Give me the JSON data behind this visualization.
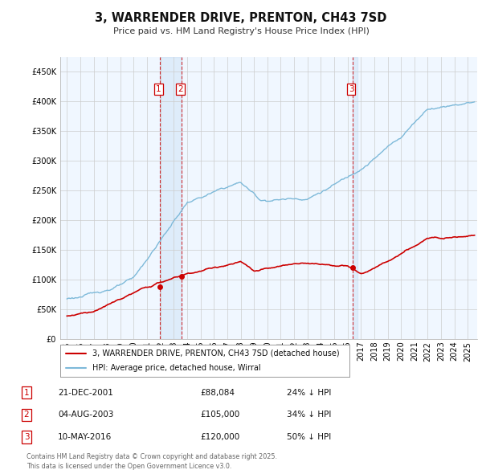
{
  "title": "3, WARRENDER DRIVE, PRENTON, CH43 7SD",
  "subtitle": "Price paid vs. HM Land Registry's House Price Index (HPI)",
  "hpi_label": "HPI: Average price, detached house, Wirral",
  "price_label": "3, WARRENDER DRIVE, PRENTON, CH43 7SD (detached house)",
  "transactions": [
    {
      "num": 1,
      "date": "21-DEC-2001",
      "price": 88084,
      "pct": "24%",
      "x_year": 2001.97,
      "price_val": 88084
    },
    {
      "num": 2,
      "date": "04-AUG-2003",
      "price": 105000,
      "pct": "34%",
      "x_year": 2003.59,
      "price_val": 105000
    },
    {
      "num": 3,
      "date": "10-MAY-2016",
      "price": 120000,
      "pct": "50%",
      "x_year": 2016.36,
      "price_val": 120000
    }
  ],
  "hpi_color": "#7db9d9",
  "hpi_shade_color": "#ddeeff",
  "price_color": "#cc0000",
  "background_color": "#ffffff",
  "plot_bg_color": "#f0f7ff",
  "grid_color": "#cccccc",
  "ylim": [
    0,
    475000
  ],
  "yticks": [
    0,
    50000,
    100000,
    150000,
    200000,
    250000,
    300000,
    350000,
    400000,
    450000
  ],
  "xlim_start": 1994.5,
  "xlim_end": 2025.7,
  "footer": "Contains HM Land Registry data © Crown copyright and database right 2025.\nThis data is licensed under the Open Government Licence v3.0.",
  "footnote_color": "#666666"
}
